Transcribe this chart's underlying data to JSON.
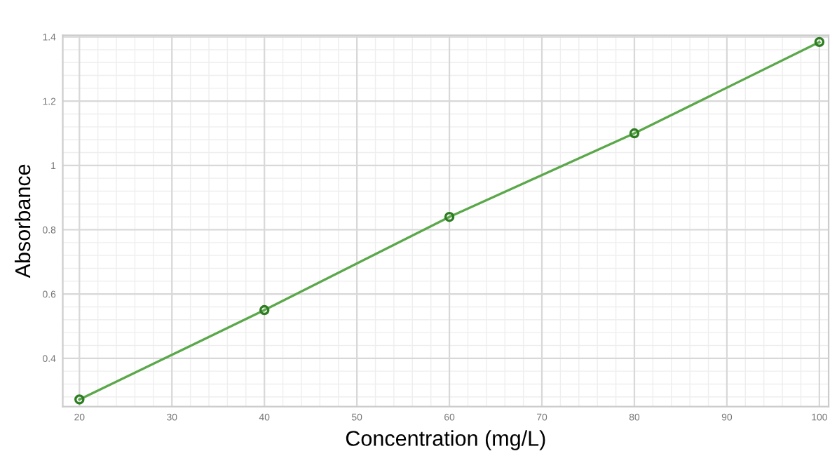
{
  "chart_data": {
    "type": "line",
    "xlabel": "Concentration (mg/L)",
    "ylabel": "Absorbance",
    "x": [
      20,
      40,
      60,
      80,
      100
    ],
    "series": [
      {
        "color": "#5aa84a",
        "values": [
          0.272,
          0.55,
          0.84,
          1.1,
          1.384
        ]
      }
    ],
    "xlim": [
      18.2,
      101
    ],
    "xticks": [
      20,
      30,
      40,
      50,
      60,
      70,
      80,
      90,
      100
    ],
    "ylim": [
      0.25,
      1.405
    ],
    "yticks": [
      0.4,
      0.6,
      0.8,
      1,
      1.2,
      1.4
    ],
    "grid": true,
    "marker": "circle",
    "line_style": "solid"
  }
}
